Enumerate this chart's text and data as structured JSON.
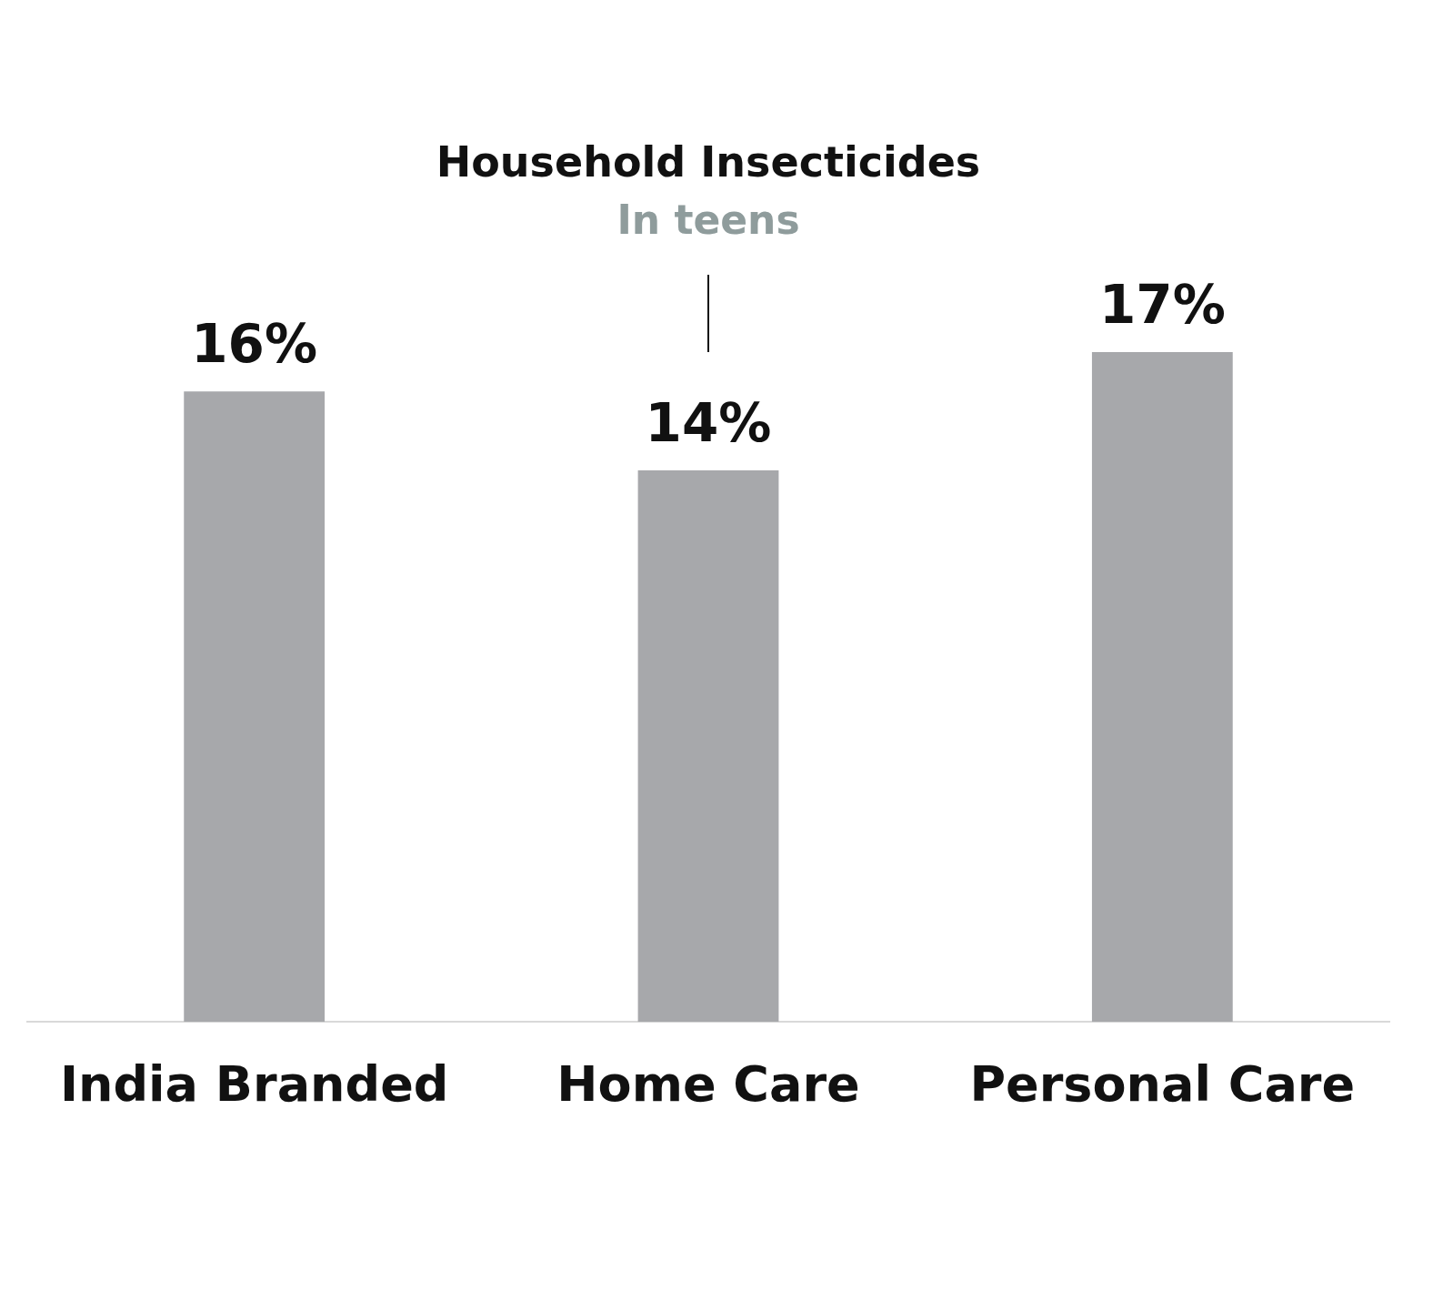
{
  "chart_data": {
    "type": "bar",
    "categories": [
      "India Branded",
      "Home Care",
      "Personal Care"
    ],
    "values": [
      16,
      14,
      17
    ],
    "value_labels": [
      "16%",
      "14%",
      "17%"
    ],
    "color": "#a7a8ab",
    "grid": false,
    "legend": false,
    "annotations": [
      "Household Insecticides",
      "In teens"
    ]
  }
}
